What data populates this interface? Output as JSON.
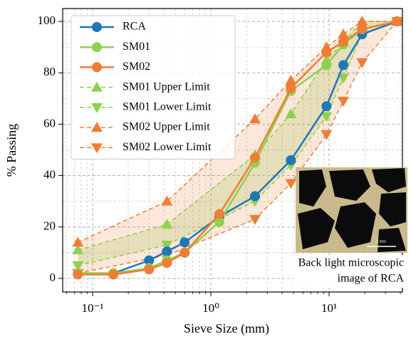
{
  "chart_data": {
    "type": "line",
    "xlabel": "Sieve Size (mm)",
    "ylabel": "% Passing",
    "xscale": "log",
    "xlim": [
      0.0558,
      41.7
    ],
    "ylim": [
      -5.3,
      105
    ],
    "xticks": [
      {
        "value": 0.1,
        "label": "10⁻¹"
      },
      {
        "value": 1,
        "label": "10⁰"
      },
      {
        "value": 10,
        "label": "10¹"
      }
    ],
    "xminorticks": [
      0.06,
      0.07,
      0.08,
      0.09,
      0.2,
      0.3,
      0.4,
      0.5,
      0.6,
      0.7,
      0.8,
      0.9,
      2,
      3,
      4,
      5,
      6,
      7,
      8,
      9,
      20,
      30,
      40
    ],
    "yticks": [
      0,
      20,
      40,
      60,
      80,
      100
    ],
    "yminorticks": [
      10,
      30,
      50,
      70,
      90
    ],
    "grid": true,
    "legend": "upper left",
    "series": [
      {
        "name": "RCA",
        "color": "#1f77b4",
        "marker": "circle",
        "linestyle": "solid",
        "x": [
          0.075,
          0.15,
          0.3,
          0.425,
          0.6,
          1.18,
          2.36,
          4.75,
          9.5,
          13.2,
          19,
          37.5
        ],
        "values": [
          2,
          2,
          7,
          10.5,
          14,
          24,
          32,
          46,
          67,
          83,
          95,
          100
        ]
      },
      {
        "name": "SM01",
        "color": "#8fd14f",
        "marker": "circle",
        "linestyle": "solid",
        "x": [
          0.075,
          0.15,
          0.3,
          0.425,
          0.6,
          1.18,
          2.36,
          4.75,
          9.5,
          13.2,
          19,
          37.5
        ],
        "values": [
          2,
          2,
          4,
          7,
          10,
          22,
          45,
          73,
          83,
          91,
          97,
          100
        ]
      },
      {
        "name": "SM02",
        "color": "#f07d35",
        "marker": "circle",
        "linestyle": "solid",
        "x": [
          0.075,
          0.15,
          0.3,
          0.425,
          0.6,
          1.18,
          2.36,
          4.75,
          9.5,
          13.2,
          19,
          37.5
        ],
        "values": [
          1.5,
          1.5,
          3.5,
          6,
          10,
          25,
          47,
          74,
          88,
          92,
          97,
          100
        ]
      },
      {
        "name": "SM01 Upper Limit",
        "color": "#8fd14f",
        "marker": "triangle-up",
        "linestyle": "dashed",
        "band_color": "rgba(143,209,79,0.22)",
        "x": [
          0.075,
          0.425,
          2.36,
          4.75,
          9.5,
          13.2,
          19,
          37.5
        ],
        "values": [
          11,
          21,
          48,
          64,
          85,
          92,
          100,
          100
        ]
      },
      {
        "name": "SM01 Lower Limit",
        "color": "#8fd14f",
        "marker": "triangle-down",
        "linestyle": "dashed",
        "x": [
          0.075,
          0.425,
          2.36,
          4.75,
          9.5,
          13.2,
          19,
          37.5
        ],
        "values": [
          5,
          13,
          30,
          44,
          63,
          78,
          95,
          100
        ]
      },
      {
        "name": "SM02 Upper Limit",
        "color": "#f07d35",
        "marker": "triangle-up",
        "linestyle": "dashed",
        "band_color": "rgba(240,125,53,0.18)",
        "x": [
          0.075,
          0.425,
          2.36,
          4.75,
          9.5,
          13.2,
          19,
          37.5
        ],
        "values": [
          14,
          30,
          62,
          77,
          90,
          95,
          100,
          100
        ]
      },
      {
        "name": "SM02 Lower Limit",
        "color": "#f07d35",
        "marker": "triangle-down",
        "linestyle": "dashed",
        "x": [
          0.075,
          0.425,
          2.36,
          4.75,
          9.5,
          13.2,
          19,
          37.5
        ],
        "values": [
          2,
          9,
          23,
          37,
          56,
          69,
          84,
          100
        ]
      }
    ],
    "inset": {
      "caption": [
        "Back light microscopic",
        "image of RCA"
      ],
      "scale_label": "5 mm"
    }
  }
}
